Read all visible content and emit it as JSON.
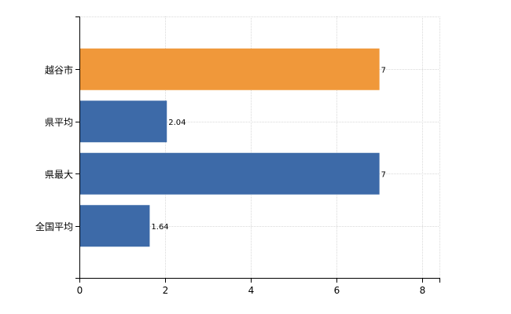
{
  "chart_data": {
    "type": "bar",
    "orientation": "horizontal",
    "title": "",
    "xlabel": "",
    "ylabel": "",
    "categories": [
      "越谷市",
      "県平均",
      "県最大",
      "全国平均"
    ],
    "values": [
      7,
      2.04,
      7,
      1.64
    ],
    "data_labels": [
      "7",
      "2.04",
      "7",
      "1.64"
    ],
    "bar_colors": [
      "#f0983a",
      "#3d6aa8",
      "#3d6aa8",
      "#3d6aa8"
    ],
    "xlim": [
      0,
      8.4
    ],
    "x_ticks": [
      0,
      2,
      4,
      6,
      8
    ],
    "x_tick_labels": [
      "0",
      "2",
      "4",
      "6",
      "8"
    ],
    "grid": true,
    "legend": "none"
  }
}
